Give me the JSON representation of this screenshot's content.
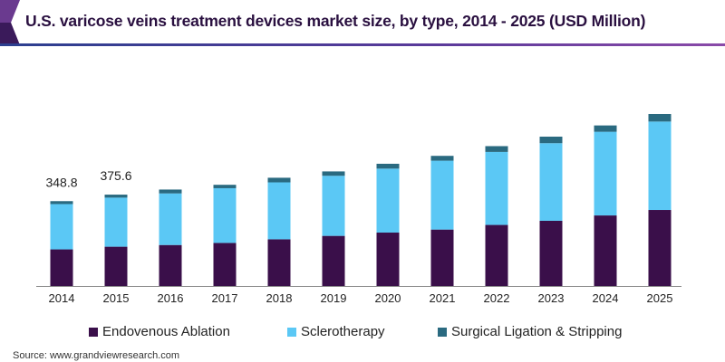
{
  "chart_data": {
    "type": "bar",
    "stacked": true,
    "title": "U.S. varicose veins treatment devices market size, by type, 2014 - 2025 (USD Million)",
    "xlabel": "",
    "ylabel": "",
    "ylim": [
      0,
      800
    ],
    "grid": false,
    "legend_position": "bottom",
    "categories": [
      "2014",
      "2015",
      "2016",
      "2017",
      "2018",
      "2019",
      "2020",
      "2021",
      "2022",
      "2023",
      "2024",
      "2025"
    ],
    "series": [
      {
        "name": "Endovenous Ablation",
        "color": "#3a0f4a",
        "values": [
          150.5,
          161.5,
          168.5,
          177,
          192,
          206,
          219.5,
          232,
          251,
          268,
          290,
          312.5
        ]
      },
      {
        "name": "Sclerotherapy",
        "color": "#5bc8f5",
        "values": [
          186.3,
          201.7,
          212,
          225,
          234,
          247,
          263,
          283,
          300,
          319,
          344,
          363.5
        ]
      },
      {
        "name": "Surgical Ligation & Stripping",
        "color": "#2a6a80",
        "values": [
          12,
          12.4,
          16,
          14,
          19,
          18,
          20,
          20,
          24,
          27,
          26,
          31
        ]
      }
    ],
    "data_labels": [
      {
        "category": "2014",
        "text": "348.8"
      },
      {
        "category": "2015",
        "text": "375.6"
      }
    ]
  },
  "legend": [
    "Endovenous Ablation",
    "Sclerotherapy",
    "Surgical Ligation & Stripping"
  ],
  "source": "Source: www.grandviewresearch.com"
}
